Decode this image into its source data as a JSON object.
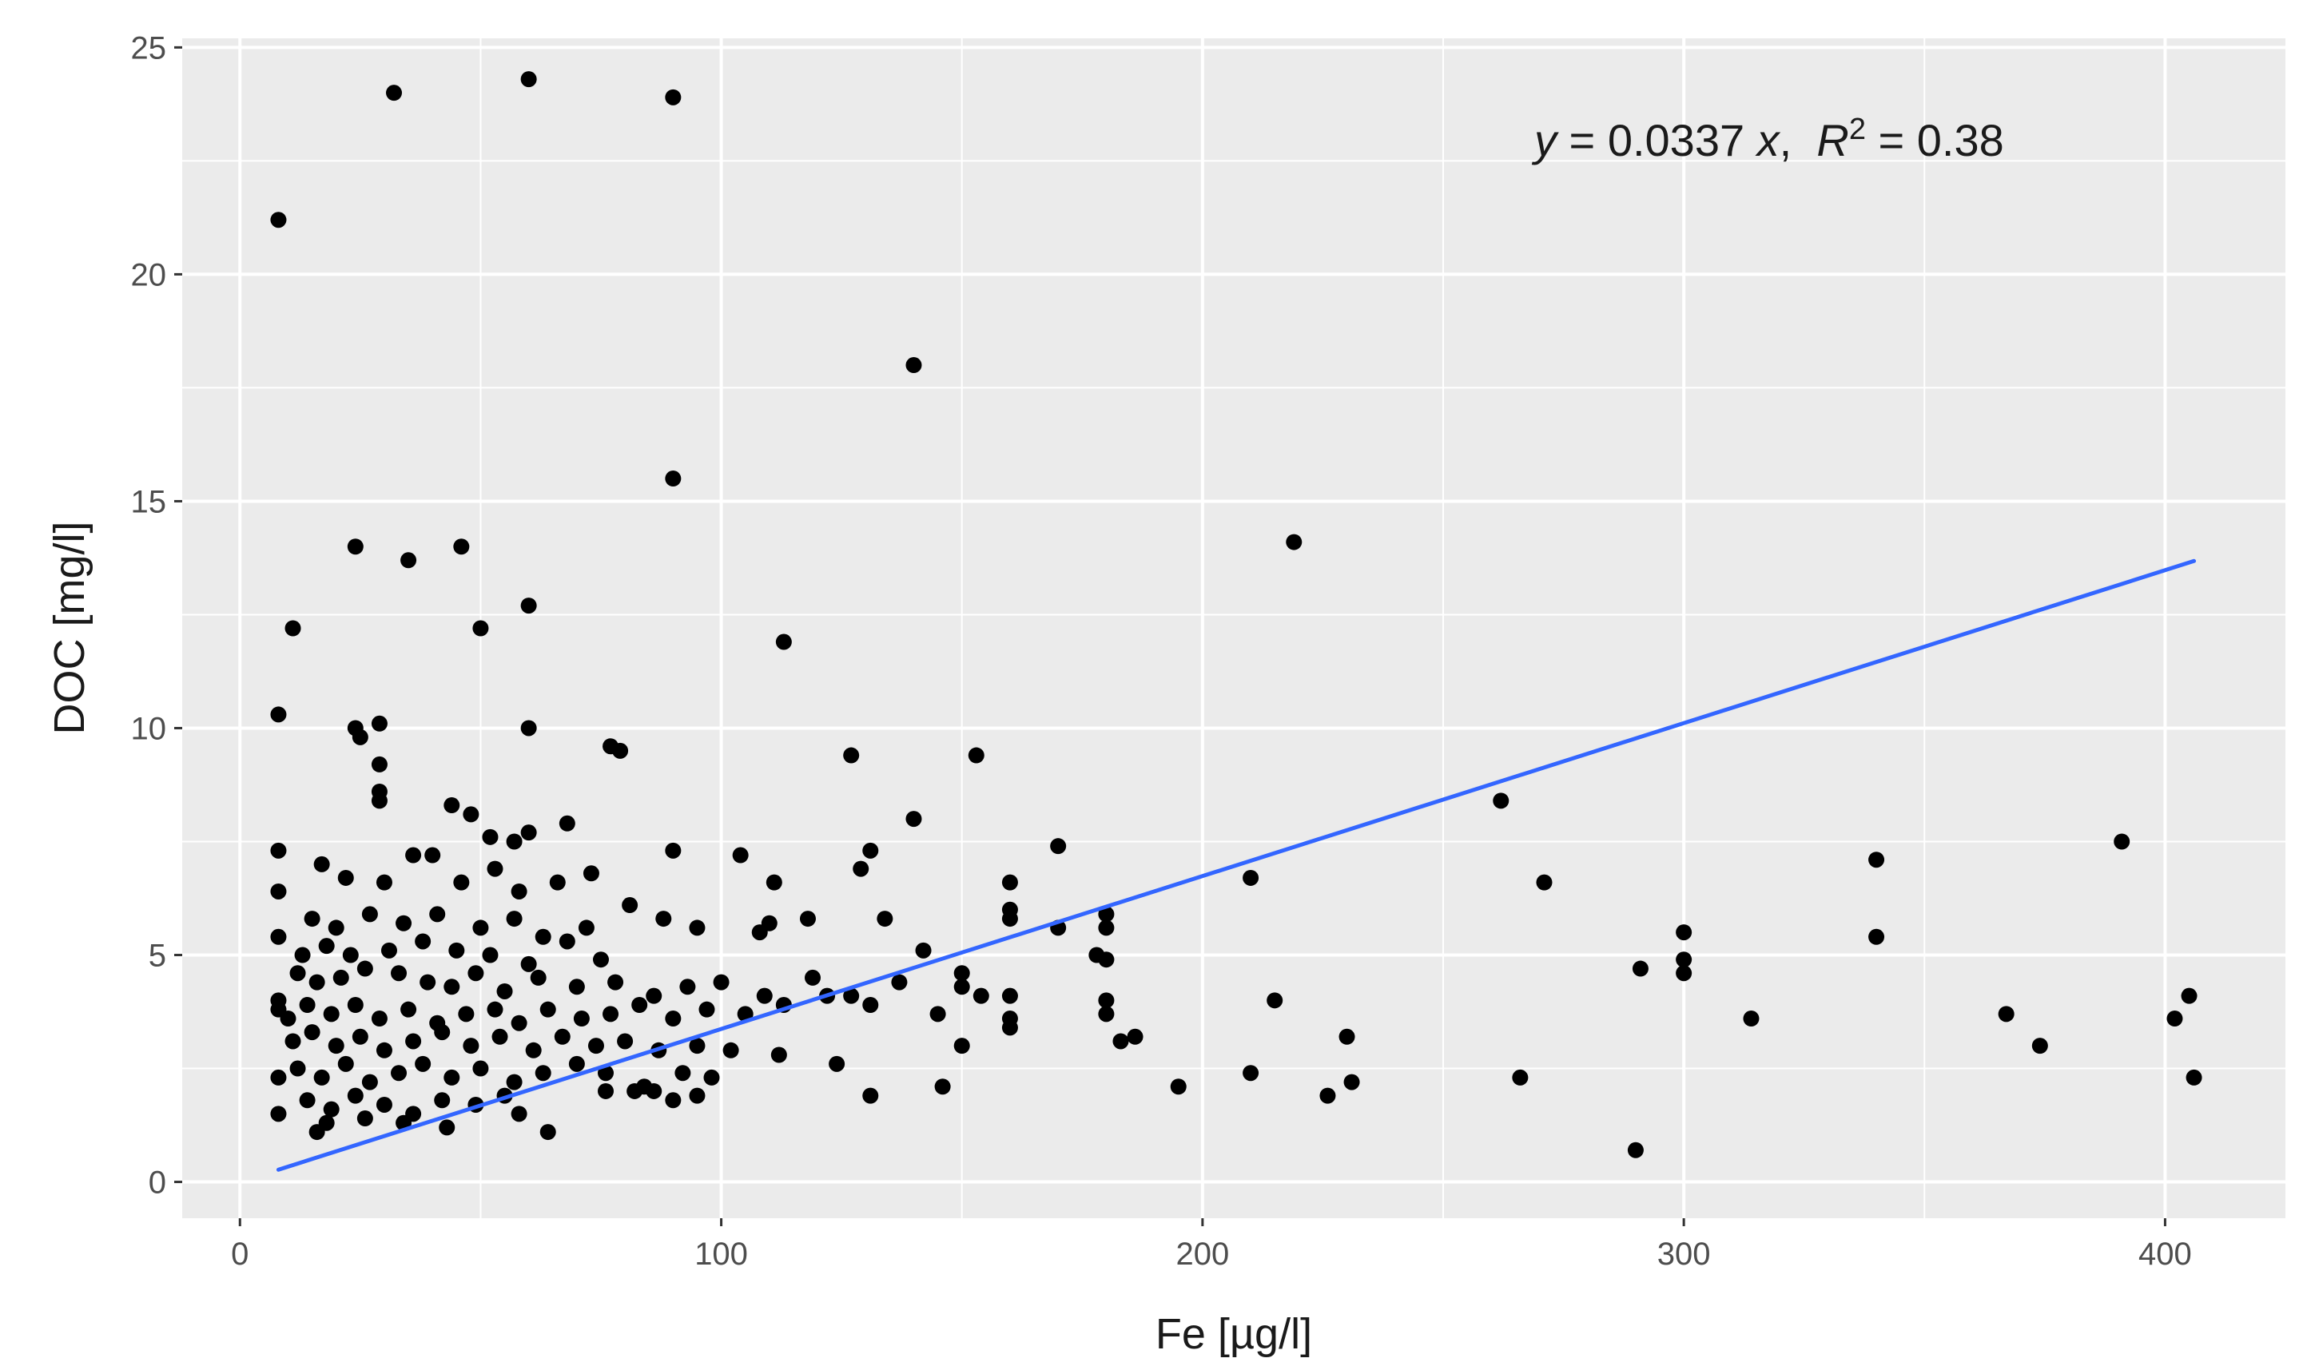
{
  "chart_data": {
    "type": "scatter",
    "title": "",
    "xlabel": "Fe [µg/l]",
    "ylabel": "DOC [mg/l]",
    "xlim": [
      -12,
      425
    ],
    "ylim": [
      -0.8,
      25.2
    ],
    "x_ticks": [
      0,
      100,
      200,
      300,
      400
    ],
    "y_ticks": [
      0,
      5,
      10,
      15,
      20,
      25
    ],
    "grid": true,
    "background": "#ebebeb",
    "point_color": "#000000",
    "fit_color": "#3366ff",
    "annotation": {
      "y_var": "y",
      "equation": " = 0.0337 ",
      "x_var": "x",
      "r2_sep": ",  ",
      "r2_var": "R",
      "r2_exp": "2",
      "r2_val": " = 0.38"
    },
    "fit_line": {
      "slope": 0.0337,
      "x_range": [
        8,
        406
      ]
    },
    "points": [
      [
        8,
        21.2
      ],
      [
        32,
        24
      ],
      [
        60,
        24.3
      ],
      [
        90,
        23.9
      ],
      [
        140,
        18
      ],
      [
        90,
        15.5
      ],
      [
        219,
        14.1
      ],
      [
        24,
        14
      ],
      [
        35,
        13.7
      ],
      [
        46,
        14
      ],
      [
        11,
        12.2
      ],
      [
        50,
        12.2
      ],
      [
        60,
        12.7
      ],
      [
        113,
        11.9
      ],
      [
        8,
        10.3
      ],
      [
        24,
        10
      ],
      [
        25,
        9.8
      ],
      [
        29,
        10.1
      ],
      [
        60,
        10
      ],
      [
        77,
        9.6
      ],
      [
        79,
        9.5
      ],
      [
        29,
        9.2
      ],
      [
        29,
        8.6
      ],
      [
        29,
        8.4
      ],
      [
        127,
        9.4
      ],
      [
        153,
        9.4
      ],
      [
        140,
        8
      ],
      [
        170,
        7.4
      ],
      [
        262,
        8.4
      ],
      [
        391,
        7.5
      ],
      [
        8,
        7.3
      ],
      [
        8,
        6.4
      ],
      [
        8,
        5.4
      ],
      [
        8,
        4
      ],
      [
        8,
        3.8
      ],
      [
        8,
        2.3
      ],
      [
        8,
        1.5
      ],
      [
        44,
        8.3
      ],
      [
        48,
        8.1
      ],
      [
        52,
        7.6
      ],
      [
        57,
        7.5
      ],
      [
        60,
        7.7
      ],
      [
        68,
        7.9
      ],
      [
        36,
        7.2
      ],
      [
        40,
        7.2
      ],
      [
        90,
        7.3
      ],
      [
        104,
        7.2
      ],
      [
        111,
        6.6
      ],
      [
        129,
        6.9
      ],
      [
        131,
        7.3
      ],
      [
        160,
        6.6
      ],
      [
        160,
        6
      ],
      [
        160,
        5.8
      ],
      [
        170,
        5.6
      ],
      [
        180,
        5.9
      ],
      [
        180,
        5.6
      ],
      [
        178,
        5
      ],
      [
        180,
        4.9
      ],
      [
        180,
        4
      ],
      [
        180,
        3.7
      ],
      [
        183,
        3.1
      ],
      [
        186,
        3.2
      ],
      [
        210,
        6.7
      ],
      [
        271,
        6.6
      ],
      [
        340,
        7.1
      ],
      [
        340,
        5.4
      ],
      [
        300,
        5.5
      ],
      [
        300,
        4.9
      ],
      [
        300,
        4.6
      ],
      [
        291,
        4.7
      ],
      [
        215,
        4
      ],
      [
        230,
        3.2
      ],
      [
        231,
        2.2
      ],
      [
        226,
        1.9
      ],
      [
        210,
        2.4
      ],
      [
        195,
        2.1
      ],
      [
        266,
        2.3
      ],
      [
        290,
        0.7
      ],
      [
        314,
        3.6
      ],
      [
        367,
        3.7
      ],
      [
        374,
        3
      ],
      [
        402,
        3.6
      ],
      [
        405,
        4.1
      ],
      [
        406,
        2.3
      ],
      [
        17,
        7
      ],
      [
        22,
        6.7
      ],
      [
        30,
        6.6
      ],
      [
        46,
        6.6
      ],
      [
        53,
        6.9
      ],
      [
        58,
        6.4
      ],
      [
        66,
        6.6
      ],
      [
        73,
        6.8
      ],
      [
        81,
        6.1
      ],
      [
        15,
        5.8
      ],
      [
        20,
        5.6
      ],
      [
        27,
        5.9
      ],
      [
        34,
        5.7
      ],
      [
        41,
        5.9
      ],
      [
        50,
        5.6
      ],
      [
        57,
        5.8
      ],
      [
        63,
        5.4
      ],
      [
        72,
        5.6
      ],
      [
        88,
        5.8
      ],
      [
        95,
        5.6
      ],
      [
        108,
        5.5
      ],
      [
        110,
        5.7
      ],
      [
        118,
        5.8
      ],
      [
        134,
        5.8
      ],
      [
        142,
        5.1
      ],
      [
        13,
        5
      ],
      [
        18,
        5.2
      ],
      [
        23,
        5
      ],
      [
        31,
        5.1
      ],
      [
        38,
        5.3
      ],
      [
        45,
        5.1
      ],
      [
        52,
        5
      ],
      [
        60,
        4.8
      ],
      [
        68,
        5.3
      ],
      [
        75,
        4.9
      ],
      [
        12,
        4.6
      ],
      [
        16,
        4.4
      ],
      [
        21,
        4.5
      ],
      [
        26,
        4.7
      ],
      [
        33,
        4.6
      ],
      [
        39,
        4.4
      ],
      [
        44,
        4.3
      ],
      [
        49,
        4.6
      ],
      [
        55,
        4.2
      ],
      [
        62,
        4.5
      ],
      [
        70,
        4.3
      ],
      [
        78,
        4.4
      ],
      [
        86,
        4.1
      ],
      [
        93,
        4.3
      ],
      [
        100,
        4.4
      ],
      [
        109,
        4.1
      ],
      [
        119,
        4.5
      ],
      [
        127,
        4.1
      ],
      [
        137,
        4.4
      ],
      [
        150,
        4.6
      ],
      [
        150,
        4.3
      ],
      [
        154,
        4.1
      ],
      [
        160,
        4.1
      ],
      [
        10,
        3.6
      ],
      [
        14,
        3.9
      ],
      [
        19,
        3.7
      ],
      [
        24,
        3.9
      ],
      [
        29,
        3.6
      ],
      [
        35,
        3.8
      ],
      [
        41,
        3.5
      ],
      [
        47,
        3.7
      ],
      [
        53,
        3.8
      ],
      [
        58,
        3.5
      ],
      [
        64,
        3.8
      ],
      [
        71,
        3.6
      ],
      [
        77,
        3.7
      ],
      [
        83,
        3.9
      ],
      [
        90,
        3.6
      ],
      [
        97,
        3.8
      ],
      [
        105,
        3.7
      ],
      [
        113,
        3.9
      ],
      [
        122,
        4.1
      ],
      [
        145,
        3.7
      ],
      [
        160,
        3.4
      ],
      [
        160,
        3.6
      ],
      [
        11,
        3.1
      ],
      [
        15,
        3.3
      ],
      [
        20,
        3
      ],
      [
        25,
        3.2
      ],
      [
        30,
        2.9
      ],
      [
        36,
        3.1
      ],
      [
        42,
        3.3
      ],
      [
        48,
        3
      ],
      [
        54,
        3.2
      ],
      [
        61,
        2.9
      ],
      [
        67,
        3.2
      ],
      [
        74,
        3
      ],
      [
        80,
        3.1
      ],
      [
        87,
        2.9
      ],
      [
        95,
        3
      ],
      [
        102,
        2.9
      ],
      [
        112,
        2.8
      ],
      [
        124,
        2.6
      ],
      [
        150,
        3
      ],
      [
        131,
        3.9
      ],
      [
        12,
        2.5
      ],
      [
        17,
        2.3
      ],
      [
        22,
        2.6
      ],
      [
        27,
        2.2
      ],
      [
        33,
        2.4
      ],
      [
        38,
        2.6
      ],
      [
        44,
        2.3
      ],
      [
        50,
        2.5
      ],
      [
        57,
        2.2
      ],
      [
        63,
        2.4
      ],
      [
        70,
        2.6
      ],
      [
        76,
        2.4
      ],
      [
        84,
        2.1
      ],
      [
        92,
        2.4
      ],
      [
        98,
        2.3
      ],
      [
        14,
        1.8
      ],
      [
        19,
        1.6
      ],
      [
        24,
        1.9
      ],
      [
        30,
        1.7
      ],
      [
        36,
        1.5
      ],
      [
        42,
        1.8
      ],
      [
        49,
        1.7
      ],
      [
        55,
        1.9
      ],
      [
        58,
        1.5
      ],
      [
        64,
        1.1
      ],
      [
        76,
        2
      ],
      [
        82,
        2
      ],
      [
        86,
        2
      ],
      [
        90,
        1.8
      ],
      [
        95,
        1.9
      ],
      [
        131,
        1.9
      ],
      [
        146,
        2.1
      ],
      [
        18,
        1.3
      ],
      [
        26,
        1.4
      ],
      [
        34,
        1.3
      ],
      [
        43,
        1.2
      ],
      [
        16,
        1.1
      ]
    ]
  }
}
